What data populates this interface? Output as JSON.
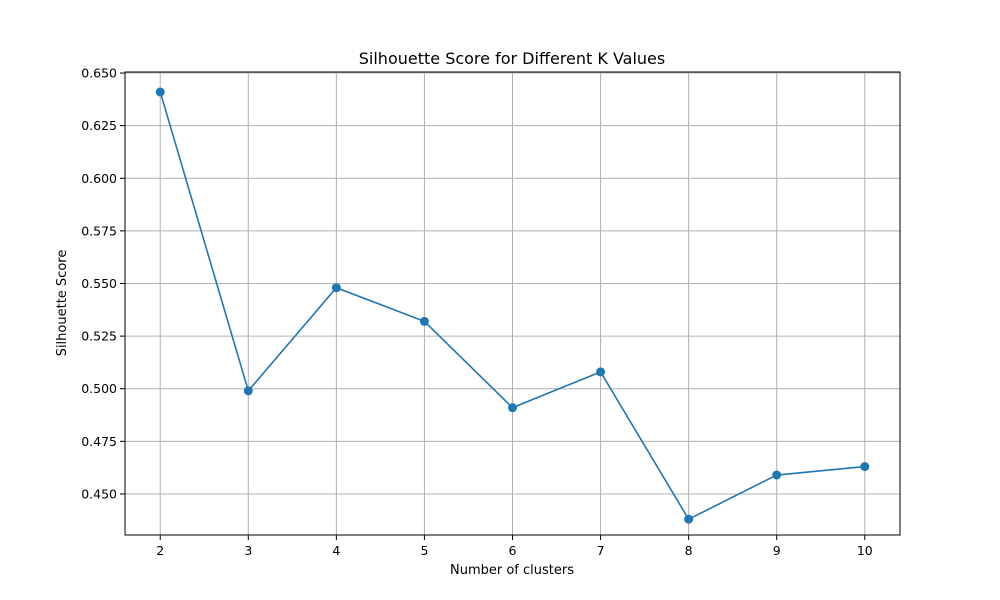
{
  "chart_data": {
    "type": "line",
    "title": "Silhouette Score for Different K Values",
    "xlabel": "Number of clusters",
    "ylabel": "Silhouette Score",
    "x": [
      2,
      3,
      4,
      5,
      6,
      7,
      8,
      9,
      10
    ],
    "series": [
      {
        "values": [
          0.641,
          0.499,
          0.548,
          0.532,
          0.491,
          0.508,
          0.438,
          0.459,
          0.463
        ]
      }
    ],
    "xlim": [
      1.6,
      10.4
    ],
    "ylim": [
      0.4305,
      0.6505
    ],
    "xticks": [
      "2",
      "3",
      "4",
      "5",
      "6",
      "7",
      "8",
      "9",
      "10"
    ],
    "yticks": [
      "0.450",
      "0.475",
      "0.500",
      "0.525",
      "0.550",
      "0.575",
      "0.600",
      "0.625",
      "0.650"
    ],
    "grid": true,
    "marker": "circle",
    "line_color": "#1f77b4"
  }
}
